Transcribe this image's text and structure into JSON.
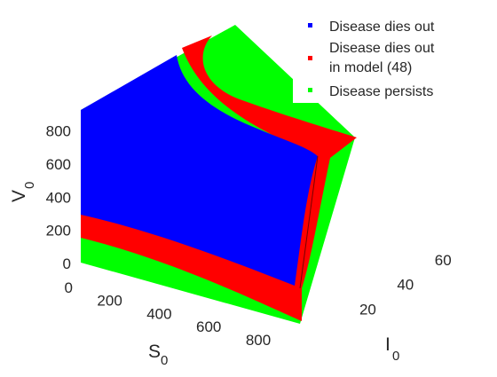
{
  "chart_data": {
    "type": "scatter",
    "projection": "3d",
    "axes": {
      "x": {
        "label": "S",
        "label_subscript": "0",
        "ticks": [
          0,
          200,
          400,
          600,
          800
        ],
        "range": [
          0,
          950
        ]
      },
      "y": {
        "label": "I",
        "label_subscript": "0",
        "ticks": [
          20,
          40,
          60
        ],
        "range": [
          0,
          75
        ]
      },
      "z": {
        "label": "V",
        "label_subscript": "0",
        "ticks": [
          0,
          200,
          400,
          600,
          800
        ],
        "range": [
          0,
          900
        ]
      }
    },
    "series": [
      {
        "name": "Disease dies out",
        "color": "#0000ff",
        "region": "inner block, V0 above boundary curve, I0 near 0"
      },
      {
        "name": "Disease dies out in model (48)",
        "color": "#ff0000",
        "region": "band between the two extinction boundaries"
      },
      {
        "name": "Disease persists",
        "color": "#00ff00",
        "region": "remaining parameter space"
      }
    ],
    "legend": {
      "position": "top-right",
      "entries": [
        {
          "lines": [
            "Disease dies out"
          ],
          "color": "#0000ff"
        },
        {
          "lines": [
            "Disease dies out",
            "in model (48)"
          ],
          "color": "#ff0000"
        },
        {
          "lines": [
            "Disease persists"
          ],
          "color": "#00ff00"
        }
      ]
    },
    "grid": false
  }
}
